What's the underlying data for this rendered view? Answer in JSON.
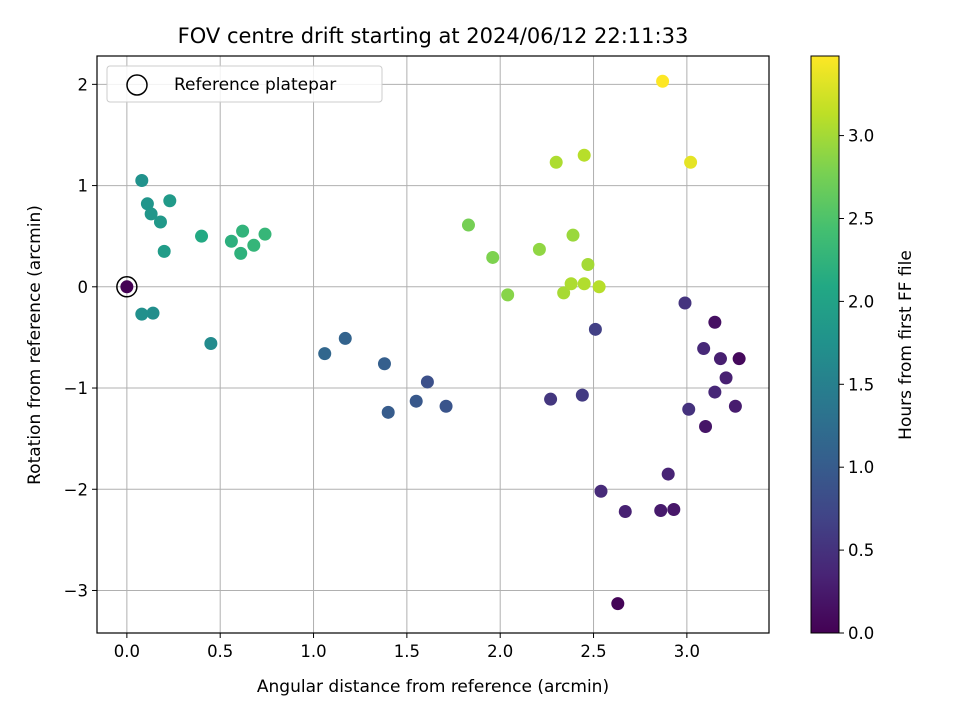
{
  "chart_data": {
    "type": "scatter",
    "title": "FOV centre drift starting at 2024/06/12 22:11:33",
    "xlabel": "Angular distance from reference (arcmin)",
    "ylabel": "Rotation from reference (arcmin)",
    "xlim": [
      -0.16,
      3.44
    ],
    "ylim": [
      -3.42,
      2.28
    ],
    "xticks": [
      0.0,
      0.5,
      1.0,
      1.5,
      2.0,
      2.5,
      3.0
    ],
    "xtick_labels": [
      "0.0",
      "0.5",
      "1.0",
      "1.5",
      "2.0",
      "2.5",
      "3.0"
    ],
    "yticks": [
      2,
      1,
      0,
      -1,
      -2,
      -3
    ],
    "ytick_labels": [
      "2",
      "1",
      "0",
      "−1",
      "−2",
      "−3"
    ],
    "grid": true,
    "legend": {
      "placement": "upper-left",
      "entries": [
        "Reference platepar"
      ]
    },
    "reference_point": {
      "x": 0.0,
      "y": 0.0
    },
    "colorbar": {
      "label": "Hours from first FF file",
      "colormap": "viridis",
      "range": [
        0.0,
        3.48
      ],
      "ticks": [
        0.0,
        0.5,
        1.0,
        1.5,
        2.0,
        2.5,
        3.0
      ],
      "tick_labels": [
        "0.0",
        "0.5",
        "1.0",
        "1.5",
        "2.0",
        "2.5",
        "3.0"
      ]
    },
    "points": [
      {
        "x": 0.0,
        "y": 0.0,
        "hours": 0.0
      },
      {
        "x": 2.63,
        "y": -3.13,
        "hours": 0.03
      },
      {
        "x": 3.28,
        "y": -0.71,
        "hours": 0.08
      },
      {
        "x": 3.15,
        "y": -0.35,
        "hours": 0.15
      },
      {
        "x": 3.1,
        "y": -1.38,
        "hours": 0.2
      },
      {
        "x": 2.93,
        "y": -2.2,
        "hours": 0.22
      },
      {
        "x": 2.86,
        "y": -2.21,
        "hours": 0.25
      },
      {
        "x": 3.26,
        "y": -1.18,
        "hours": 0.27
      },
      {
        "x": 3.18,
        "y": -0.71,
        "hours": 0.3
      },
      {
        "x": 3.21,
        "y": -0.9,
        "hours": 0.32
      },
      {
        "x": 2.67,
        "y": -2.22,
        "hours": 0.33
      },
      {
        "x": 2.9,
        "y": -1.85,
        "hours": 0.35
      },
      {
        "x": 3.15,
        "y": -1.04,
        "hours": 0.38
      },
      {
        "x": 3.09,
        "y": -0.61,
        "hours": 0.4
      },
      {
        "x": 2.54,
        "y": -2.02,
        "hours": 0.42
      },
      {
        "x": 3.01,
        "y": -1.21,
        "hours": 0.5
      },
      {
        "x": 2.99,
        "y": -0.16,
        "hours": 0.52
      },
      {
        "x": 2.27,
        "y": -1.11,
        "hours": 0.55
      },
      {
        "x": 2.44,
        "y": -1.07,
        "hours": 0.6
      },
      {
        "x": 2.51,
        "y": -0.42,
        "hours": 0.65
      },
      {
        "x": 1.61,
        "y": -0.94,
        "hours": 0.85
      },
      {
        "x": 1.71,
        "y": -1.18,
        "hours": 0.9
      },
      {
        "x": 1.55,
        "y": -1.13,
        "hours": 0.95
      },
      {
        "x": 1.4,
        "y": -1.24,
        "hours": 1.0
      },
      {
        "x": 1.38,
        "y": -0.76,
        "hours": 1.05
      },
      {
        "x": 1.17,
        "y": -0.51,
        "hours": 1.1
      },
      {
        "x": 1.06,
        "y": -0.66,
        "hours": 1.15
      },
      {
        "x": 0.45,
        "y": -0.56,
        "hours": 1.65
      },
      {
        "x": 0.14,
        "y": -0.26,
        "hours": 1.7
      },
      {
        "x": 0.08,
        "y": -0.27,
        "hours": 1.72
      },
      {
        "x": 0.08,
        "y": 1.05,
        "hours": 1.75
      },
      {
        "x": 0.11,
        "y": 0.82,
        "hours": 1.8
      },
      {
        "x": 0.13,
        "y": 0.72,
        "hours": 1.82
      },
      {
        "x": 0.18,
        "y": 0.64,
        "hours": 1.85
      },
      {
        "x": 0.23,
        "y": 0.85,
        "hours": 1.88
      },
      {
        "x": 0.2,
        "y": 0.35,
        "hours": 1.9
      },
      {
        "x": 0.4,
        "y": 0.5,
        "hours": 2.1
      },
      {
        "x": 0.56,
        "y": 0.45,
        "hours": 2.2
      },
      {
        "x": 0.61,
        "y": 0.33,
        "hours": 2.22
      },
      {
        "x": 0.62,
        "y": 0.55,
        "hours": 2.25
      },
      {
        "x": 0.68,
        "y": 0.41,
        "hours": 2.28
      },
      {
        "x": 0.74,
        "y": 0.52,
        "hours": 2.3
      },
      {
        "x": 1.83,
        "y": 0.61,
        "hours": 2.75
      },
      {
        "x": 1.96,
        "y": 0.29,
        "hours": 2.8
      },
      {
        "x": 2.04,
        "y": -0.08,
        "hours": 2.85
      },
      {
        "x": 2.21,
        "y": 0.37,
        "hours": 2.9
      },
      {
        "x": 2.39,
        "y": 0.51,
        "hours": 2.95
      },
      {
        "x": 2.47,
        "y": 0.22,
        "hours": 3.0
      },
      {
        "x": 2.34,
        "y": -0.06,
        "hours": 3.02
      },
      {
        "x": 2.38,
        "y": 0.03,
        "hours": 3.05
      },
      {
        "x": 2.45,
        "y": 0.03,
        "hours": 3.07
      },
      {
        "x": 2.53,
        "y": 0.0,
        "hours": 3.1
      },
      {
        "x": 2.3,
        "y": 1.23,
        "hours": 3.05
      },
      {
        "x": 2.45,
        "y": 1.3,
        "hours": 3.1
      },
      {
        "x": 3.02,
        "y": 1.23,
        "hours": 3.35
      },
      {
        "x": 2.87,
        "y": 2.03,
        "hours": 3.48
      }
    ]
  }
}
